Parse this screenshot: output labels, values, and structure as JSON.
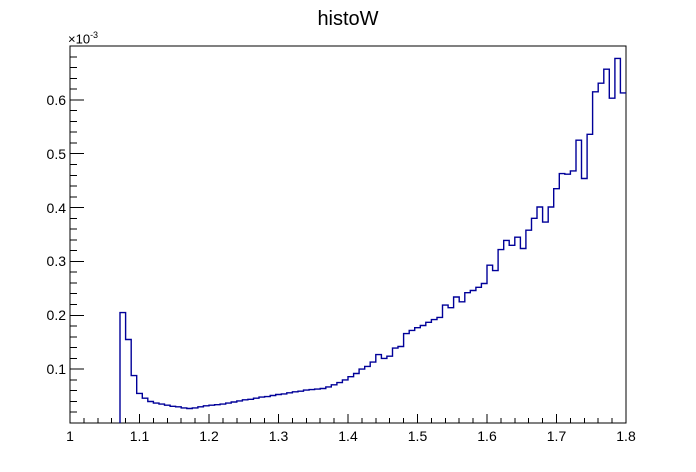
{
  "title": "histoW",
  "exponent": {
    "base": "×10",
    "power": "-3"
  },
  "colors": {
    "line": "#000099",
    "frame": "#000000",
    "background": "#ffffff",
    "text": "#000000"
  },
  "chart_data": {
    "type": "bar",
    "subtype": "step-histogram",
    "title": "histoW",
    "xlabel": "",
    "ylabel": "",
    "xlim": [
      1.0,
      1.8
    ],
    "ylim_e3": [
      0,
      0.7
    ],
    "grid": false,
    "legend": "none",
    "bin_start": 1.0,
    "bin_width": 0.008,
    "n_bins": 100,
    "values_unit": "1e-3",
    "values_e3": [
      0,
      0,
      0,
      0,
      0,
      0,
      0,
      0,
      0,
      0.205,
      0.155,
      0.088,
      0.055,
      0.046,
      0.04,
      0.037,
      0.035,
      0.033,
      0.031,
      0.03,
      0.028,
      0.027,
      0.028,
      0.03,
      0.032,
      0.033,
      0.034,
      0.035,
      0.037,
      0.039,
      0.041,
      0.043,
      0.044,
      0.046,
      0.048,
      0.049,
      0.051,
      0.053,
      0.054,
      0.056,
      0.058,
      0.059,
      0.061,
      0.062,
      0.063,
      0.064,
      0.067,
      0.071,
      0.075,
      0.08,
      0.086,
      0.092,
      0.1,
      0.105,
      0.113,
      0.127,
      0.12,
      0.124,
      0.139,
      0.142,
      0.166,
      0.172,
      0.177,
      0.181,
      0.187,
      0.192,
      0.196,
      0.219,
      0.214,
      0.234,
      0.225,
      0.242,
      0.246,
      0.252,
      0.259,
      0.293,
      0.283,
      0.322,
      0.339,
      0.33,
      0.345,
      0.324,
      0.358,
      0.38,
      0.401,
      0.373,
      0.401,
      0.435,
      0.463,
      0.462,
      0.468,
      0.525,
      0.454,
      0.536,
      0.615,
      0.631,
      0.657,
      0.603,
      0.677,
      0.613
    ],
    "x_ticks": {
      "major_values": [
        1.0,
        1.1,
        1.2,
        1.3,
        1.4,
        1.5,
        1.6,
        1.7,
        1.8
      ],
      "labels": [
        "1",
        "1.1",
        "1.2",
        "1.3",
        "1.4",
        "1.5",
        "1.6",
        "1.7",
        "1.8"
      ],
      "minor_step": 0.02
    },
    "y_ticks": {
      "major_values_e3": [
        0.1,
        0.2,
        0.3,
        0.4,
        0.5,
        0.6
      ],
      "labels": [
        "0.1",
        "0.2",
        "0.3",
        "0.4",
        "0.5",
        "0.6"
      ],
      "minor_step_e3": 0.02,
      "scale_label": "×10^-3"
    }
  }
}
